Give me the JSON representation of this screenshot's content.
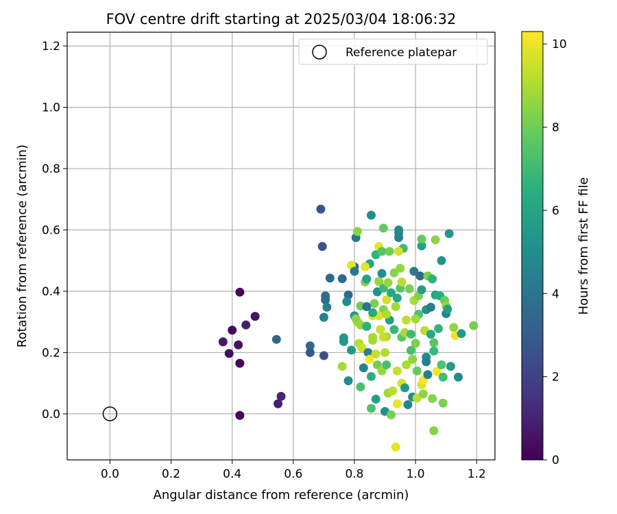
{
  "chart_data": {
    "type": "scatter",
    "title": "FOV centre drift starting at 2025/03/04 18:06:32",
    "xlabel": "Angular distance from reference (arcmin)",
    "ylabel": "Rotation from reference (arcmin)",
    "xlim": [
      -0.14,
      1.26
    ],
    "ylim": [
      -0.15,
      1.245
    ],
    "xticks": [
      0.0,
      0.2,
      0.4,
      0.6,
      0.8,
      1.0,
      1.2
    ],
    "yticks": [
      0.0,
      0.2,
      0.4,
      0.6,
      0.8,
      1.0,
      1.2
    ],
    "grid": true,
    "legend": {
      "position": "top-right",
      "entries": [
        "Reference platepar"
      ]
    },
    "reference_point": {
      "x": 0.0,
      "y": 0.0
    },
    "colorbar": {
      "label": "Hours from first FF file",
      "colormap": "viridis",
      "range": [
        0,
        10.3
      ],
      "ticks": [
        0,
        2,
        4,
        6,
        8,
        10
      ]
    },
    "tick_labels_x": [
      "0.0",
      "0.2",
      "0.4",
      "0.6",
      "0.8",
      "1.0",
      "1.2"
    ],
    "tick_labels_y": [
      "0.0",
      "0.2",
      "0.4",
      "0.6",
      "0.8",
      "1.0",
      "1.2"
    ],
    "colorbar_tick_labels": [
      "0",
      "2",
      "4",
      "6",
      "8",
      "10"
    ],
    "points": [
      {
        "x": 0.425,
        "y": 0.397,
        "c": 0.2
      },
      {
        "x": 0.475,
        "y": 0.318,
        "c": 0.6
      },
      {
        "x": 0.4,
        "y": 0.273,
        "c": 0.3
      },
      {
        "x": 0.445,
        "y": 0.29,
        "c": 1.0
      },
      {
        "x": 0.37,
        "y": 0.235,
        "c": 0.7
      },
      {
        "x": 0.42,
        "y": 0.225,
        "c": 0.5
      },
      {
        "x": 0.39,
        "y": 0.197,
        "c": 0.4
      },
      {
        "x": 0.425,
        "y": 0.165,
        "c": 0.1
      },
      {
        "x": 0.425,
        "y": -0.005,
        "c": 0.2
      },
      {
        "x": 0.56,
        "y": 0.057,
        "c": 1.1
      },
      {
        "x": 0.55,
        "y": 0.033,
        "c": 0.9
      },
      {
        "x": 0.545,
        "y": 0.243,
        "c": 3.4
      },
      {
        "x": 0.655,
        "y": 0.222,
        "c": 3.5
      },
      {
        "x": 0.655,
        "y": 0.2,
        "c": 2.8
      },
      {
        "x": 0.7,
        "y": 0.19,
        "c": 2.5
      },
      {
        "x": 0.69,
        "y": 0.668,
        "c": 2.6
      },
      {
        "x": 0.695,
        "y": 0.546,
        "c": 2.6
      },
      {
        "x": 0.705,
        "y": 0.385,
        "c": 3.7
      },
      {
        "x": 0.705,
        "y": 0.372,
        "c": 3.6
      },
      {
        "x": 0.71,
        "y": 0.348,
        "c": 4.4
      },
      {
        "x": 0.7,
        "y": 0.315,
        "c": 4.5
      },
      {
        "x": 0.72,
        "y": 0.443,
        "c": 3.6
      },
      {
        "x": 0.76,
        "y": 0.441,
        "c": 3.5
      },
      {
        "x": 0.78,
        "y": 0.388,
        "c": 3.7
      },
      {
        "x": 0.775,
        "y": 0.366,
        "c": 4.9
      },
      {
        "x": 0.765,
        "y": 0.248,
        "c": 5.4
      },
      {
        "x": 0.765,
        "y": 0.236,
        "c": 5.5
      },
      {
        "x": 0.78,
        "y": 0.108,
        "c": 5.0
      },
      {
        "x": 0.79,
        "y": 0.208,
        "c": 5.6
      },
      {
        "x": 0.8,
        "y": 0.48,
        "c": 3.8
      },
      {
        "x": 0.805,
        "y": 0.575,
        "c": 4.0
      },
      {
        "x": 0.81,
        "y": 0.595,
        "c": 8.4
      },
      {
        "x": 0.8,
        "y": 0.32,
        "c": 5.5
      },
      {
        "x": 0.81,
        "y": 0.3,
        "c": 8.8
      },
      {
        "x": 0.805,
        "y": 0.31,
        "c": 8.5
      },
      {
        "x": 0.815,
        "y": 0.23,
        "c": 9.2
      },
      {
        "x": 0.82,
        "y": 0.088,
        "c": 7.3
      },
      {
        "x": 0.82,
        "y": 0.352,
        "c": 8.0
      },
      {
        "x": 0.825,
        "y": 0.215,
        "c": 9.5
      },
      {
        "x": 0.83,
        "y": 0.15,
        "c": 4.5
      },
      {
        "x": 0.835,
        "y": 0.43,
        "c": 8.3
      },
      {
        "x": 0.84,
        "y": 0.44,
        "c": 5.8
      },
      {
        "x": 0.84,
        "y": 0.286,
        "c": 4.2
      },
      {
        "x": 0.845,
        "y": 0.2,
        "c": 4.6
      },
      {
        "x": 0.85,
        "y": 0.178,
        "c": 10.2
      },
      {
        "x": 0.85,
        "y": 0.49,
        "c": 6.1
      },
      {
        "x": 0.855,
        "y": 0.648,
        "c": 5.0
      },
      {
        "x": 0.855,
        "y": 0.122,
        "c": 6.5
      },
      {
        "x": 0.855,
        "y": 0.018,
        "c": 7.3
      },
      {
        "x": 0.86,
        "y": 0.32,
        "c": 9.8
      },
      {
        "x": 0.86,
        "y": 0.25,
        "c": 8.9
      },
      {
        "x": 0.865,
        "y": 0.36,
        "c": 8.2
      },
      {
        "x": 0.87,
        "y": 0.519,
        "c": 6.7
      },
      {
        "x": 0.87,
        "y": 0.048,
        "c": 5.8
      },
      {
        "x": 0.875,
        "y": 0.398,
        "c": 5.2
      },
      {
        "x": 0.875,
        "y": 0.16,
        "c": 8.1
      },
      {
        "x": 0.88,
        "y": 0.546,
        "c": 9.9
      },
      {
        "x": 0.88,
        "y": 0.432,
        "c": 8.6
      },
      {
        "x": 0.885,
        "y": 0.275,
        "c": 9.5
      },
      {
        "x": 0.89,
        "y": 0.53,
        "c": 7.5
      },
      {
        "x": 0.89,
        "y": 0.458,
        "c": 5.1
      },
      {
        "x": 0.895,
        "y": 0.606,
        "c": 7.8
      },
      {
        "x": 0.895,
        "y": 0.41,
        "c": 6.9
      },
      {
        "x": 0.895,
        "y": 0.34,
        "c": 8.3
      },
      {
        "x": 0.9,
        "y": 0.2,
        "c": 9.1
      },
      {
        "x": 0.9,
        "y": 0.008,
        "c": 5.1
      },
      {
        "x": 0.905,
        "y": 0.372,
        "c": 9.6
      },
      {
        "x": 0.905,
        "y": 0.252,
        "c": 9.0
      },
      {
        "x": 0.91,
        "y": 0.428,
        "c": 8.6
      },
      {
        "x": 0.91,
        "y": 0.068,
        "c": 8.8
      },
      {
        "x": 0.915,
        "y": 0.306,
        "c": 5.8
      },
      {
        "x": 0.92,
        "y": 0.395,
        "c": 6.2
      },
      {
        "x": 0.92,
        "y": -0.003,
        "c": 8.1
      },
      {
        "x": 0.925,
        "y": 0.075,
        "c": 9.2
      },
      {
        "x": 0.93,
        "y": 0.46,
        "c": 8.4
      },
      {
        "x": 0.93,
        "y": 0.275,
        "c": 6.8
      },
      {
        "x": 0.935,
        "y": -0.108,
        "c": 9.9
      },
      {
        "x": 0.94,
        "y": 0.033,
        "c": 10.0
      },
      {
        "x": 0.94,
        "y": 0.378,
        "c": 6.2
      },
      {
        "x": 0.945,
        "y": 0.6,
        "c": 5.1
      },
      {
        "x": 0.945,
        "y": 0.59,
        "c": 4.8
      },
      {
        "x": 0.945,
        "y": 0.575,
        "c": 4.5
      },
      {
        "x": 0.95,
        "y": 0.475,
        "c": 8.6
      },
      {
        "x": 0.95,
        "y": 0.41,
        "c": 7.5
      },
      {
        "x": 0.955,
        "y": 0.25,
        "c": 7.6
      },
      {
        "x": 0.955,
        "y": 0.1,
        "c": 9.6
      },
      {
        "x": 0.96,
        "y": 0.54,
        "c": 7.0
      },
      {
        "x": 0.965,
        "y": 0.085,
        "c": 5.5
      },
      {
        "x": 0.965,
        "y": 0.265,
        "c": 8.9
      },
      {
        "x": 0.97,
        "y": 0.306,
        "c": 9.3
      },
      {
        "x": 0.975,
        "y": 0.03,
        "c": 4.7
      },
      {
        "x": 0.98,
        "y": 0.408,
        "c": 8.1
      },
      {
        "x": 0.985,
        "y": 0.207,
        "c": 7.2
      },
      {
        "x": 0.99,
        "y": 0.178,
        "c": 8.5
      },
      {
        "x": 0.99,
        "y": 0.055,
        "c": 5.0
      },
      {
        "x": 0.995,
        "y": 0.465,
        "c": 4.2
      },
      {
        "x": 0.995,
        "y": 0.37,
        "c": 8.9
      },
      {
        "x": 1.0,
        "y": 0.23,
        "c": 8.2
      },
      {
        "x": 1.005,
        "y": 0.052,
        "c": 9.3
      },
      {
        "x": 1.01,
        "y": 0.385,
        "c": 8.3
      },
      {
        "x": 1.01,
        "y": 0.325,
        "c": 7.3
      },
      {
        "x": 1.015,
        "y": 0.45,
        "c": 3.6
      },
      {
        "x": 1.02,
        "y": 0.548,
        "c": 5.8
      },
      {
        "x": 1.02,
        "y": 0.57,
        "c": 7.8
      },
      {
        "x": 1.02,
        "y": 0.095,
        "c": 9.7
      },
      {
        "x": 1.025,
        "y": 0.11,
        "c": 10.2
      },
      {
        "x": 1.025,
        "y": 0.065,
        "c": 8.5
      },
      {
        "x": 1.03,
        "y": 0.272,
        "c": 9.2
      },
      {
        "x": 1.035,
        "y": 0.34,
        "c": 5.1
      },
      {
        "x": 1.035,
        "y": 0.185,
        "c": 5.0
      },
      {
        "x": 1.035,
        "y": 0.17,
        "c": 4.5
      },
      {
        "x": 1.04,
        "y": 0.45,
        "c": 8.1
      },
      {
        "x": 1.04,
        "y": 0.128,
        "c": 4.4
      },
      {
        "x": 1.05,
        "y": 0.348,
        "c": 4.4
      },
      {
        "x": 1.05,
        "y": 0.26,
        "c": 6.2
      },
      {
        "x": 1.055,
        "y": 0.44,
        "c": 6.6
      },
      {
        "x": 1.055,
        "y": 0.05,
        "c": 8.4
      },
      {
        "x": 1.06,
        "y": 0.232,
        "c": 7.6
      },
      {
        "x": 1.06,
        "y": -0.055,
        "c": 8.4
      },
      {
        "x": 1.065,
        "y": 0.388,
        "c": 6.1
      },
      {
        "x": 1.065,
        "y": 0.568,
        "c": 8.5
      },
      {
        "x": 1.07,
        "y": 0.138,
        "c": 10.1
      },
      {
        "x": 1.075,
        "y": 0.278,
        "c": 6.7
      },
      {
        "x": 1.08,
        "y": 0.385,
        "c": 6.4
      },
      {
        "x": 1.085,
        "y": 0.5,
        "c": 5.3
      },
      {
        "x": 1.085,
        "y": 0.16,
        "c": 7.4
      },
      {
        "x": 1.09,
        "y": 0.12,
        "c": 7.1
      },
      {
        "x": 1.09,
        "y": 0.035,
        "c": 8.2
      },
      {
        "x": 1.095,
        "y": 0.37,
        "c": 7.9
      },
      {
        "x": 1.1,
        "y": 0.352,
        "c": 8.6
      },
      {
        "x": 1.1,
        "y": 0.327,
        "c": 4.7
      },
      {
        "x": 1.105,
        "y": 0.342,
        "c": 5.8
      },
      {
        "x": 1.11,
        "y": 0.588,
        "c": 5.5
      },
      {
        "x": 1.115,
        "y": 0.155,
        "c": 5.6
      },
      {
        "x": 1.125,
        "y": 0.282,
        "c": 8.6
      },
      {
        "x": 1.13,
        "y": 0.255,
        "c": 10.0
      },
      {
        "x": 1.14,
        "y": 0.12,
        "c": 5.0
      },
      {
        "x": 1.15,
        "y": 0.262,
        "c": 5.4
      },
      {
        "x": 1.19,
        "y": 0.288,
        "c": 8.1
      },
      {
        "x": 0.88,
        "y": 0.32,
        "c": 9.7
      },
      {
        "x": 0.86,
        "y": 0.24,
        "c": 8.9
      },
      {
        "x": 0.87,
        "y": 0.195,
        "c": 9.4
      },
      {
        "x": 0.89,
        "y": 0.14,
        "c": 8.7
      },
      {
        "x": 0.935,
        "y": 0.35,
        "c": 8.8
      },
      {
        "x": 0.945,
        "y": 0.53,
        "c": 9.6
      },
      {
        "x": 0.915,
        "y": 0.53,
        "c": 8.0
      },
      {
        "x": 0.97,
        "y": 0.16,
        "c": 9.0
      },
      {
        "x": 0.94,
        "y": 0.14,
        "c": 9.4
      },
      {
        "x": 1.0,
        "y": 0.31,
        "c": 8.8
      },
      {
        "x": 1.005,
        "y": 0.14,
        "c": 7.8
      },
      {
        "x": 1.06,
        "y": 0.205,
        "c": 6.9
      },
      {
        "x": 0.985,
        "y": 0.26,
        "c": 7.0
      },
      {
        "x": 0.82,
        "y": 0.29,
        "c": 8.7
      },
      {
        "x": 0.79,
        "y": 0.485,
        "c": 9.9
      },
      {
        "x": 0.84,
        "y": 0.285,
        "c": 6.6
      },
      {
        "x": 0.86,
        "y": 0.33,
        "c": 6.3
      },
      {
        "x": 0.895,
        "y": 0.25,
        "c": 9.4
      },
      {
        "x": 0.76,
        "y": 0.155,
        "c": 8.9
      },
      {
        "x": 0.905,
        "y": 0.16,
        "c": 7.2
      },
      {
        "x": 0.84,
        "y": 0.35,
        "c": 3.9
      },
      {
        "x": 0.8,
        "y": 0.465,
        "c": 4.2
      },
      {
        "x": 0.905,
        "y": 0.325,
        "c": 9.0
      },
      {
        "x": 0.955,
        "y": 0.43,
        "c": 9.2
      },
      {
        "x": 1.02,
        "y": 0.405,
        "c": 5.7
      },
      {
        "x": 0.835,
        "y": 0.48,
        "c": 9.9
      }
    ]
  }
}
